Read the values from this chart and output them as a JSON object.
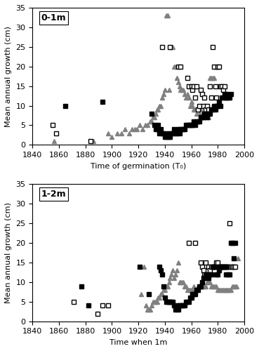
{
  "panel1": {
    "label": "0-1m",
    "xlabel": "Time of germination (T₀)",
    "ylabel": "Mean annual growth (cm)",
    "xlim": [
      1840,
      2000
    ],
    "ylim": [
      0,
      35
    ],
    "xticks": [
      1840,
      1860,
      1880,
      1900,
      1920,
      1940,
      1960,
      1980,
      2000
    ],
    "yticks": [
      0,
      5,
      10,
      15,
      20,
      25,
      30,
      35
    ],
    "dovre_filled_squares": [
      [
        1865,
        10
      ],
      [
        1893,
        11
      ],
      [
        1930,
        8
      ],
      [
        1932,
        5
      ],
      [
        1933,
        4
      ],
      [
        1934,
        4
      ],
      [
        1935,
        5
      ],
      [
        1936,
        3
      ],
      [
        1937,
        4
      ],
      [
        1938,
        3
      ],
      [
        1939,
        3
      ],
      [
        1940,
        2
      ],
      [
        1941,
        2
      ],
      [
        1942,
        3
      ],
      [
        1943,
        2
      ],
      [
        1944,
        2
      ],
      [
        1945,
        3
      ],
      [
        1946,
        3
      ],
      [
        1947,
        4
      ],
      [
        1948,
        3
      ],
      [
        1949,
        3
      ],
      [
        1950,
        4
      ],
      [
        1951,
        3
      ],
      [
        1952,
        4
      ],
      [
        1953,
        4
      ],
      [
        1954,
        4
      ],
      [
        1955,
        4
      ],
      [
        1956,
        5
      ],
      [
        1957,
        5
      ],
      [
        1958,
        5
      ],
      [
        1959,
        5
      ],
      [
        1960,
        5
      ],
      [
        1961,
        5
      ],
      [
        1962,
        6
      ],
      [
        1963,
        5
      ],
      [
        1964,
        6
      ],
      [
        1965,
        6
      ],
      [
        1966,
        6
      ],
      [
        1967,
        7
      ],
      [
        1968,
        7
      ],
      [
        1969,
        7
      ],
      [
        1970,
        8
      ],
      [
        1971,
        8
      ],
      [
        1972,
        7
      ],
      [
        1973,
        8
      ],
      [
        1974,
        8
      ],
      [
        1975,
        9
      ],
      [
        1976,
        9
      ],
      [
        1977,
        10
      ],
      [
        1978,
        9
      ],
      [
        1979,
        10
      ],
      [
        1980,
        10
      ],
      [
        1981,
        11
      ],
      [
        1982,
        10
      ],
      [
        1983,
        12
      ],
      [
        1984,
        12
      ],
      [
        1985,
        13
      ],
      [
        1986,
        12
      ],
      [
        1987,
        13
      ],
      [
        1988,
        12
      ],
      [
        1989,
        12
      ],
      [
        1990,
        13
      ]
    ],
    "abisko_open_squares": [
      [
        1855,
        5
      ],
      [
        1858,
        3
      ],
      [
        1884,
        1
      ],
      [
        1938,
        25
      ],
      [
        1944,
        25
      ],
      [
        1950,
        20
      ],
      [
        1952,
        20
      ],
      [
        1957,
        17
      ],
      [
        1958,
        15
      ],
      [
        1960,
        15
      ],
      [
        1961,
        14
      ],
      [
        1962,
        15
      ],
      [
        1963,
        12
      ],
      [
        1964,
        15
      ],
      [
        1965,
        9
      ],
      [
        1966,
        10
      ],
      [
        1967,
        14
      ],
      [
        1968,
        13
      ],
      [
        1969,
        10
      ],
      [
        1970,
        12
      ],
      [
        1971,
        9
      ],
      [
        1972,
        10
      ],
      [
        1973,
        9
      ],
      [
        1974,
        15
      ],
      [
        1975,
        12
      ],
      [
        1976,
        25
      ],
      [
        1977,
        20
      ],
      [
        1978,
        15
      ],
      [
        1979,
        12
      ],
      [
        1980,
        20
      ],
      [
        1981,
        20
      ],
      [
        1982,
        15
      ],
      [
        1983,
        15
      ],
      [
        1984,
        14
      ],
      [
        1985,
        15
      ],
      [
        1986,
        12
      ]
    ],
    "joatka_triangles": [
      [
        1856,
        1
      ],
      [
        1886,
        1
      ],
      [
        1897,
        3
      ],
      [
        1900,
        2
      ],
      [
        1904,
        3
      ],
      [
        1907,
        3
      ],
      [
        1910,
        4
      ],
      [
        1913,
        3
      ],
      [
        1915,
        4
      ],
      [
        1917,
        4
      ],
      [
        1919,
        4
      ],
      [
        1921,
        5
      ],
      [
        1923,
        4
      ],
      [
        1925,
        5
      ],
      [
        1927,
        5
      ],
      [
        1929,
        6
      ],
      [
        1930,
        6
      ],
      [
        1931,
        7
      ],
      [
        1932,
        7
      ],
      [
        1933,
        8
      ],
      [
        1934,
        9
      ],
      [
        1935,
        9
      ],
      [
        1936,
        10
      ],
      [
        1937,
        10
      ],
      [
        1938,
        12
      ],
      [
        1939,
        13
      ],
      [
        1940,
        14
      ],
      [
        1941,
        33
      ],
      [
        1942,
        33
      ],
      [
        1943,
        14
      ],
      [
        1944,
        25
      ],
      [
        1945,
        25
      ],
      [
        1946,
        25
      ],
      [
        1947,
        20
      ],
      [
        1948,
        20
      ],
      [
        1949,
        17
      ],
      [
        1950,
        16
      ],
      [
        1951,
        15
      ],
      [
        1952,
        14
      ],
      [
        1953,
        14
      ],
      [
        1954,
        14
      ],
      [
        1955,
        13
      ],
      [
        1956,
        12
      ],
      [
        1957,
        13
      ],
      [
        1958,
        12
      ],
      [
        1959,
        10
      ],
      [
        1960,
        11
      ],
      [
        1961,
        10
      ],
      [
        1962,
        9
      ],
      [
        1963,
        9
      ],
      [
        1964,
        8
      ],
      [
        1965,
        9
      ],
      [
        1966,
        8
      ],
      [
        1967,
        9
      ],
      [
        1968,
        8
      ],
      [
        1969,
        7
      ],
      [
        1970,
        8
      ],
      [
        1971,
        8
      ],
      [
        1972,
        7
      ],
      [
        1973,
        7
      ],
      [
        1974,
        17
      ],
      [
        1975,
        17
      ],
      [
        1976,
        17
      ],
      [
        1977,
        17
      ],
      [
        1978,
        20
      ],
      [
        1979,
        20
      ],
      [
        1980,
        20
      ]
    ]
  },
  "panel2": {
    "label": "1-2m",
    "xlabel": "Time when 1m",
    "ylabel": "Mean annual growth (cm)",
    "xlim": [
      1840,
      2000
    ],
    "ylim": [
      0,
      35
    ],
    "xticks": [
      1840,
      1860,
      1880,
      1900,
      1920,
      1940,
      1960,
      1980,
      2000
    ],
    "yticks": [
      0,
      5,
      10,
      15,
      20,
      25,
      30,
      35
    ],
    "dovre_filled_squares": [
      [
        1877,
        9
      ],
      [
        1882,
        4
      ],
      [
        1921,
        14
      ],
      [
        1928,
        7
      ],
      [
        1936,
        14
      ],
      [
        1937,
        13
      ],
      [
        1938,
        12
      ],
      [
        1939,
        9
      ],
      [
        1940,
        6
      ],
      [
        1941,
        5
      ],
      [
        1942,
        5
      ],
      [
        1943,
        5
      ],
      [
        1944,
        5
      ],
      [
        1945,
        5
      ],
      [
        1946,
        5
      ],
      [
        1947,
        4
      ],
      [
        1948,
        3
      ],
      [
        1949,
        4
      ],
      [
        1950,
        3
      ],
      [
        1951,
        4
      ],
      [
        1952,
        4
      ],
      [
        1953,
        4
      ],
      [
        1954,
        4
      ],
      [
        1955,
        4
      ],
      [
        1956,
        5
      ],
      [
        1957,
        5
      ],
      [
        1958,
        5
      ],
      [
        1959,
        6
      ],
      [
        1960,
        6
      ],
      [
        1961,
        7
      ],
      [
        1962,
        7
      ],
      [
        1963,
        7
      ],
      [
        1964,
        8
      ],
      [
        1965,
        8
      ],
      [
        1966,
        9
      ],
      [
        1967,
        9
      ],
      [
        1968,
        10
      ],
      [
        1969,
        11
      ],
      [
        1970,
        11
      ],
      [
        1971,
        12
      ],
      [
        1972,
        12
      ],
      [
        1973,
        11
      ],
      [
        1974,
        12
      ],
      [
        1975,
        12
      ],
      [
        1976,
        14
      ],
      [
        1977,
        14
      ],
      [
        1978,
        14
      ],
      [
        1979,
        12
      ],
      [
        1980,
        12
      ],
      [
        1981,
        13
      ],
      [
        1982,
        14
      ],
      [
        1983,
        14
      ],
      [
        1984,
        14
      ],
      [
        1985,
        14
      ],
      [
        1986,
        12
      ],
      [
        1987,
        14
      ],
      [
        1988,
        12
      ],
      [
        1989,
        12
      ],
      [
        1990,
        20
      ],
      [
        1991,
        20
      ],
      [
        1992,
        16
      ],
      [
        1993,
        20
      ]
    ],
    "abisko_open_squares": [
      [
        1871,
        5
      ],
      [
        1889,
        2
      ],
      [
        1893,
        4
      ],
      [
        1897,
        4
      ],
      [
        1958,
        20
      ],
      [
        1963,
        20
      ],
      [
        1967,
        15
      ],
      [
        1968,
        14
      ],
      [
        1969,
        13
      ],
      [
        1970,
        12
      ],
      [
        1971,
        15
      ],
      [
        1972,
        12
      ],
      [
        1973,
        14
      ],
      [
        1974,
        13
      ],
      [
        1975,
        14
      ],
      [
        1976,
        14
      ],
      [
        1977,
        14
      ],
      [
        1978,
        14
      ],
      [
        1979,
        15
      ],
      [
        1980,
        15
      ],
      [
        1981,
        14
      ],
      [
        1982,
        14
      ],
      [
        1983,
        14
      ],
      [
        1984,
        14
      ],
      [
        1985,
        14
      ],
      [
        1986,
        14
      ],
      [
        1987,
        14
      ],
      [
        1988,
        14
      ],
      [
        1989,
        25
      ],
      [
        1990,
        14
      ],
      [
        1991,
        14
      ],
      [
        1992,
        14
      ],
      [
        1993,
        14
      ]
    ],
    "joatka_triangles": [
      [
        1922,
        7
      ],
      [
        1924,
        14
      ],
      [
        1926,
        4
      ],
      [
        1927,
        3
      ],
      [
        1928,
        3
      ],
      [
        1929,
        3
      ],
      [
        1930,
        4
      ],
      [
        1931,
        5
      ],
      [
        1932,
        5
      ],
      [
        1933,
        5
      ],
      [
        1934,
        5
      ],
      [
        1935,
        6
      ],
      [
        1936,
        6
      ],
      [
        1937,
        7
      ],
      [
        1938,
        7
      ],
      [
        1939,
        8
      ],
      [
        1940,
        8
      ],
      [
        1941,
        9
      ],
      [
        1942,
        9
      ],
      [
        1943,
        10
      ],
      [
        1944,
        11
      ],
      [
        1945,
        12
      ],
      [
        1946,
        13
      ],
      [
        1947,
        11
      ],
      [
        1948,
        12
      ],
      [
        1949,
        13
      ],
      [
        1950,
        15
      ],
      [
        1951,
        10
      ],
      [
        1952,
        10
      ],
      [
        1953,
        10
      ],
      [
        1954,
        10
      ],
      [
        1955,
        9
      ],
      [
        1956,
        9
      ],
      [
        1957,
        8
      ],
      [
        1958,
        8
      ],
      [
        1959,
        8
      ],
      [
        1960,
        8
      ],
      [
        1961,
        8
      ],
      [
        1962,
        9
      ],
      [
        1963,
        8
      ],
      [
        1964,
        8
      ],
      [
        1965,
        9
      ],
      [
        1966,
        9
      ],
      [
        1967,
        9
      ],
      [
        1968,
        9
      ],
      [
        1969,
        9
      ],
      [
        1970,
        9
      ],
      [
        1971,
        9
      ],
      [
        1972,
        10
      ],
      [
        1973,
        10
      ],
      [
        1974,
        10
      ],
      [
        1975,
        9
      ],
      [
        1976,
        9
      ],
      [
        1977,
        9
      ],
      [
        1978,
        9
      ],
      [
        1979,
        9
      ],
      [
        1980,
        8
      ],
      [
        1981,
        8
      ],
      [
        1982,
        8
      ],
      [
        1983,
        8
      ],
      [
        1984,
        8
      ],
      [
        1985,
        8
      ],
      [
        1986,
        8
      ],
      [
        1987,
        8
      ],
      [
        1988,
        8
      ],
      [
        1989,
        8
      ],
      [
        1990,
        8
      ],
      [
        1991,
        9
      ],
      [
        1992,
        9
      ],
      [
        1993,
        9
      ],
      [
        1994,
        9
      ],
      [
        1995,
        16
      ]
    ]
  },
  "colors": {
    "dovre": "#000000",
    "abisko_face": "#ffffff",
    "abisko_edge": "#000000",
    "joatka": "#808080"
  },
  "marker_size": 4.5
}
